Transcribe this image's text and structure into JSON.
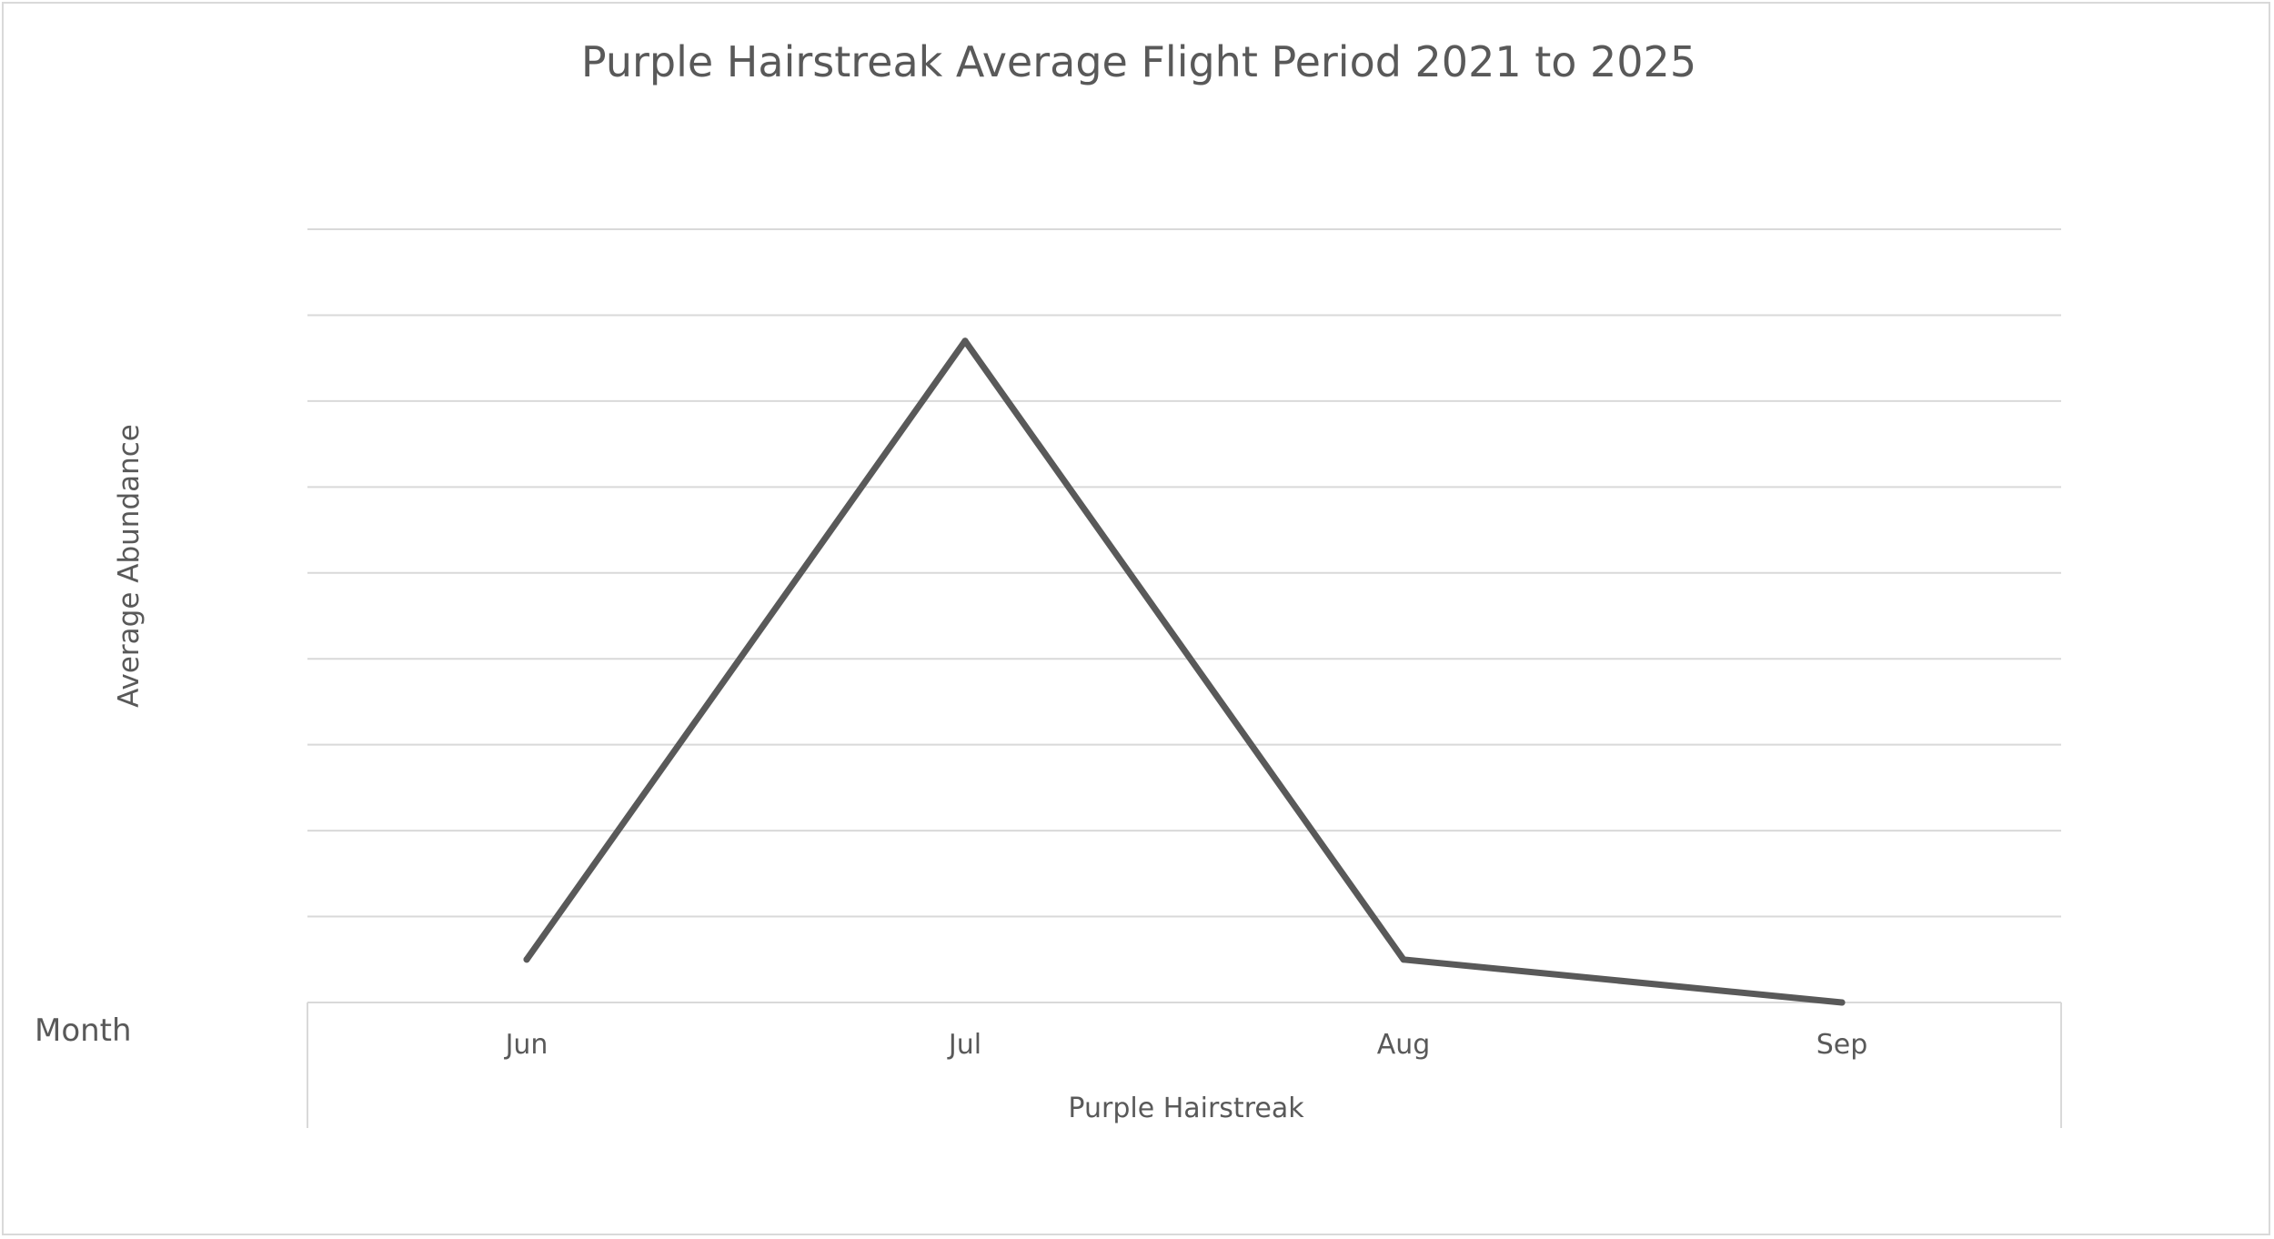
{
  "chart_data": {
    "type": "line",
    "title": "Purple Hairstreak Average Flight Period 2021 to 2025",
    "ylabel": "Average Abundance",
    "xlabel": "Purple Hairstreak",
    "category_field_label": "Month",
    "categories": [
      "Jun",
      "Jul",
      "Aug",
      "Sep"
    ],
    "series": [
      {
        "values": [
          0.5,
          7.7,
          0.5,
          0.0
        ]
      }
    ],
    "ylim": [
      0,
      9
    ],
    "y_gridlines": [
      1,
      2,
      3,
      4,
      5,
      6,
      7,
      8,
      9
    ],
    "y_tick_labels_shown": false,
    "grid": true,
    "legend": "none",
    "colors": {
      "line": "#595959",
      "grid": "#d9d9d9",
      "text": "#595959"
    }
  }
}
